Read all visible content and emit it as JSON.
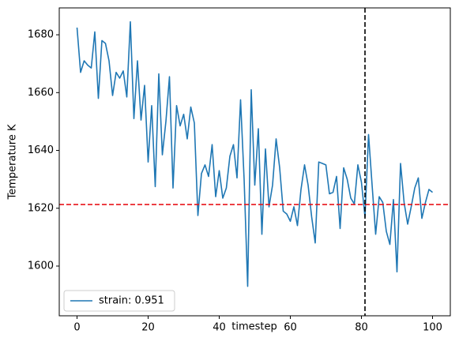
{
  "chart_data": {
    "type": "line",
    "xlabel": "timestep",
    "ylabel": "Temperature K",
    "x": [
      0,
      1,
      2,
      3,
      4,
      5,
      6,
      7,
      8,
      9,
      10,
      11,
      12,
      13,
      14,
      15,
      16,
      17,
      18,
      19,
      20,
      21,
      22,
      23,
      24,
      25,
      26,
      27,
      28,
      29,
      30,
      31,
      32,
      33,
      34,
      35,
      36,
      37,
      38,
      39,
      40,
      41,
      42,
      43,
      44,
      45,
      46,
      47,
      48,
      49,
      50,
      51,
      52,
      53,
      54,
      55,
      56,
      57,
      58,
      59,
      60,
      61,
      62,
      63,
      64,
      65,
      66,
      67,
      68,
      69,
      70,
      71,
      72,
      73,
      74,
      75,
      76,
      77,
      78,
      79,
      80,
      81,
      82,
      83,
      84,
      85,
      86,
      87,
      88,
      89,
      90,
      91,
      92,
      93,
      94,
      95,
      96,
      97,
      98,
      99,
      100
    ],
    "series": [
      {
        "name": "strain: 0.951",
        "color": "#1f77b4",
        "values": [
          1682.5,
          1667,
          1671,
          1669.5,
          1668.5,
          1681,
          1658,
          1678,
          1677,
          1671,
          1659,
          1667,
          1665,
          1667.5,
          1658.5,
          1684.5,
          1651,
          1671,
          1650.5,
          1662.5,
          1636,
          1655.5,
          1627.5,
          1666.5,
          1638.5,
          1650,
          1665.5,
          1627,
          1655.5,
          1648.5,
          1652.5,
          1644,
          1655,
          1649.5,
          1617.5,
          1632,
          1635,
          1631,
          1642,
          1624,
          1633,
          1623.5,
          1627,
          1638,
          1642,
          1630.5,
          1657.5,
          1630,
          1593,
          1661,
          1628,
          1647.5,
          1611,
          1640.5,
          1620.5,
          1628,
          1644,
          1634,
          1619,
          1618,
          1615.5,
          1620.5,
          1614,
          1626.5,
          1635,
          1628,
          1617,
          1608,
          1636,
          1635.5,
          1635,
          1625,
          1625.5,
          1631,
          1613,
          1634,
          1630,
          1623.5,
          1621.5,
          1635,
          1629,
          1617,
          1645.5,
          1628,
          1611,
          1624,
          1622,
          1612,
          1607.5,
          1623,
          1598,
          1635.5,
          1622,
          1614.5,
          1620.5,
          1627,
          1630.5,
          1616.5,
          1622,
          1626.5,
          1625.5
        ]
      }
    ],
    "xlim": [
      -5,
      105
    ],
    "ylim": [
      1582.8,
      1689.3
    ],
    "xticks": [
      0,
      20,
      40,
      60,
      80,
      100
    ],
    "yticks": [
      1600,
      1620,
      1640,
      1660,
      1680
    ],
    "hline": {
      "value": 1621.3,
      "color": "#e8141a"
    },
    "vline": {
      "value": 81,
      "color": "#000000"
    },
    "legend": "lower left"
  }
}
